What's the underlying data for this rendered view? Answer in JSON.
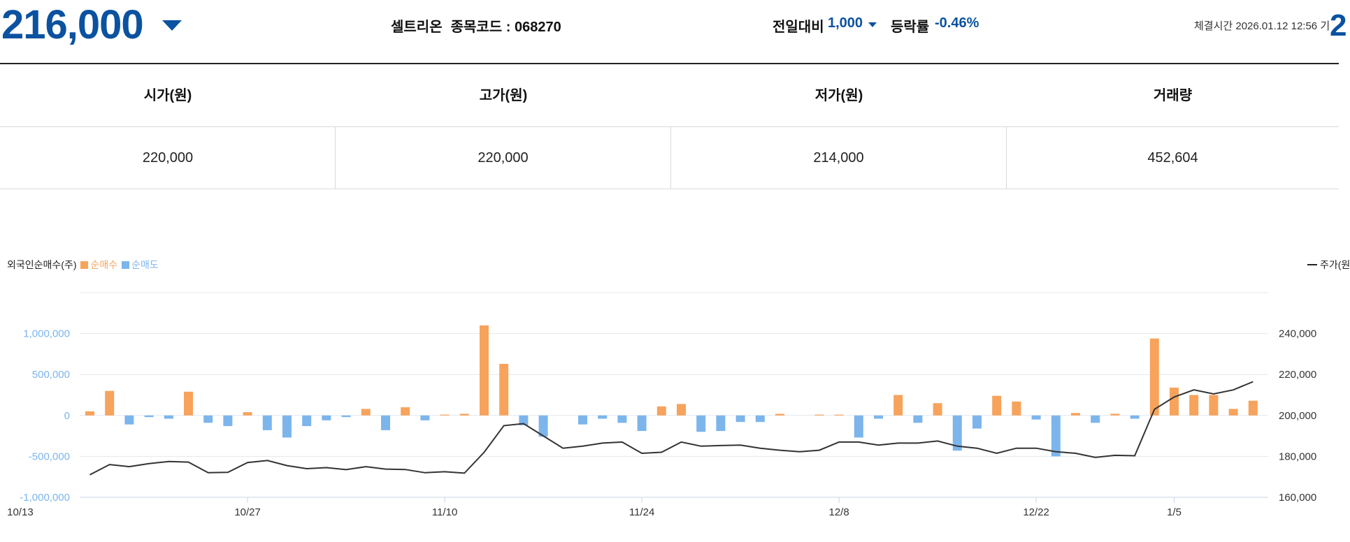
{
  "header": {
    "price": "216,000",
    "stock_name": "셀트리온",
    "stock_code": "종목코드 : 068270",
    "compare_label": "전일대비",
    "compare_value": "1,000",
    "rate_label": "등락률",
    "rate_value": "-0.46%",
    "trade_time": "체결시간 2026.01.12 12:56 기",
    "edge_digit": "2",
    "color_down": "#0b52a0"
  },
  "ohlc": {
    "headers": [
      "시가(원)",
      "고가(원)",
      "저가(원)",
      "거래량"
    ],
    "values": [
      "220,000",
      "220,000",
      "214,000",
      "452,604"
    ]
  },
  "chart_data": {
    "type": "bar+line",
    "legend_left": {
      "title": "외국인순매수(주)",
      "buy": "순매수",
      "sell": "순매도"
    },
    "legend_right": {
      "line": "주가(원"
    },
    "colors": {
      "buy": "#f7a35c",
      "sell": "#7cb5ec",
      "line": "#333333",
      "left_axis_text": "#7cb5ec"
    },
    "x_tick_labels": [
      "10/13",
      "10/27",
      "11/10",
      "11/24",
      "12/8",
      "12/22",
      "1/5"
    ],
    "x_tick_indices": [
      -3,
      8,
      18,
      28,
      38,
      48,
      55
    ],
    "left_axis": {
      "ticks": [
        1000000,
        500000,
        0,
        -500000,
        -1000000
      ],
      "tick_labels": [
        "1,000,000",
        "500,000",
        "0",
        "-500,000",
        "-1,000,000"
      ],
      "range": [
        -1000000,
        1500000
      ]
    },
    "right_axis": {
      "ticks": [
        240000,
        220000,
        200000,
        180000,
        160000
      ],
      "tick_labels": [
        "240,000",
        "220,000",
        "200,000",
        "180,000",
        "160,000"
      ],
      "range": [
        160000,
        260000
      ]
    },
    "net_buy": [
      50000,
      300000,
      -110000,
      -20000,
      -40000,
      290000,
      -90000,
      -130000,
      40000,
      -180000,
      -270000,
      -130000,
      -60000,
      -20000,
      80000,
      -180000,
      100000,
      -60000,
      10000,
      20000,
      1100000,
      630000,
      -120000,
      -260000,
      0,
      -110000,
      -40000,
      -90000,
      -190000,
      110000,
      140000,
      -200000,
      -190000,
      -80000,
      -80000,
      20000,
      0,
      10000,
      10000,
      -270000,
      -40000,
      250000,
      -90000,
      150000,
      -430000,
      -160000,
      240000,
      170000,
      -50000,
      -500000,
      30000,
      -90000,
      20000,
      -40000,
      940000,
      340000,
      250000,
      250000,
      80000,
      180000
    ],
    "price": [
      171000,
      176000,
      175000,
      176500,
      177500,
      177200,
      172000,
      172200,
      177000,
      178000,
      175500,
      174000,
      174500,
      173500,
      175000,
      173800,
      173600,
      172000,
      172500,
      171800,
      182000,
      195000,
      196000,
      190000,
      184000,
      185000,
      186500,
      187000,
      181500,
      182000,
      187000,
      185000,
      185300,
      185500,
      184000,
      183000,
      182300,
      183000,
      187000,
      187000,
      185500,
      186500,
      186500,
      187500,
      185000,
      184000,
      181500,
      184000,
      184000,
      182300,
      181500,
      179500,
      180500,
      180300,
      203000,
      209000,
      212500,
      210500,
      212500,
      216500
    ]
  }
}
